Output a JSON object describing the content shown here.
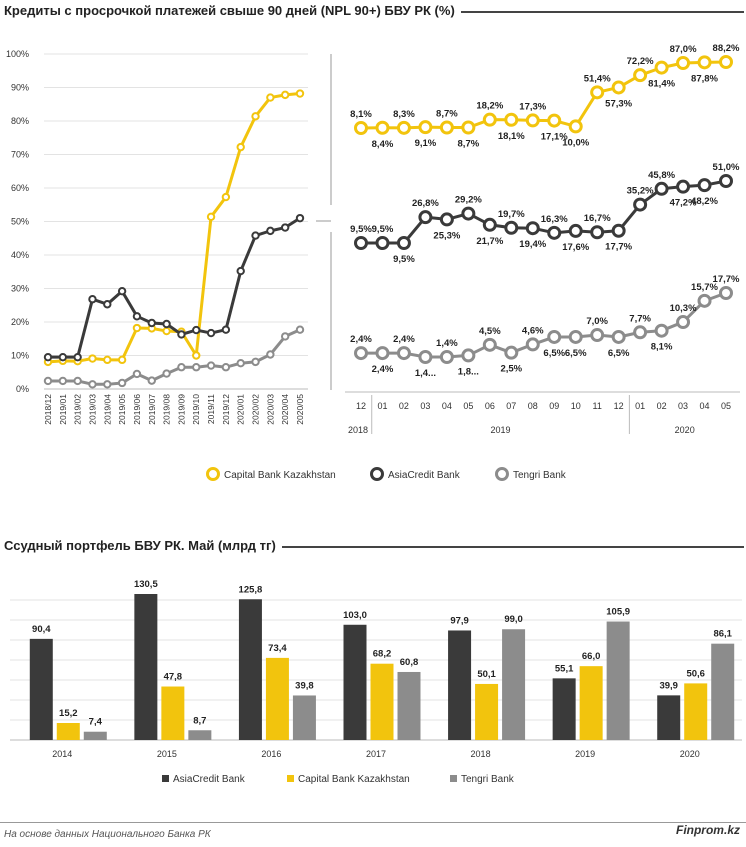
{
  "colors": {
    "capital": "#f2c40d",
    "asia": "#3a3a3a",
    "tengri": "#8c8c8c",
    "grid": "#e3e3e3",
    "axis": "#bbbbbb"
  },
  "chart_top_title": "Кредиты с просрочкой платежей свыше 90 дней (NPL 90+) БВУ РК (%)",
  "chart_bottom_title": "Ссудный портфель БВУ РК. Май (млрд тг)",
  "footer": {
    "source": "На основе данных Национального  Банка РК",
    "brand": "Finprom.kz"
  },
  "chart_data": [
    {
      "type": "line",
      "title": "Кредиты с просрочкой платежей свыше 90 дней (NPL 90+) БВУ РК (%)",
      "panel": "left",
      "x": [
        "2018/12",
        "2019/01",
        "2019/02",
        "2019/03",
        "2019/04",
        "2019/05",
        "2019/06",
        "2019/07",
        "2019/08",
        "2019/09",
        "2019/10",
        "2019/11",
        "2019/12",
        "2020/01",
        "2020/02",
        "2020/03",
        "2020/04",
        "2020/05"
      ],
      "yticks": [
        "0%",
        "10%",
        "20%",
        "30%",
        "40%",
        "50%",
        "60%",
        "70%",
        "80%",
        "90%",
        "100%"
      ],
      "ylim": [
        0,
        100
      ],
      "grid": true,
      "legend": "none",
      "series": [
        {
          "key": "capital",
          "values": [
            8.1,
            8.4,
            8.3,
            9.1,
            8.7,
            8.7,
            18.2,
            18.1,
            17.3,
            17.1,
            10.0,
            51.4,
            57.3,
            72.2,
            81.4,
            87.0,
            87.8,
            88.2
          ]
        },
        {
          "key": "asia",
          "values": [
            9.5,
            9.5,
            9.5,
            26.8,
            25.3,
            29.2,
            21.7,
            19.7,
            19.4,
            16.3,
            17.6,
            16.7,
            17.7,
            35.2,
            45.8,
            47.2,
            48.2,
            51.0
          ]
        },
        {
          "key": "tengri",
          "values": [
            2.4,
            2.4,
            2.4,
            1.4,
            1.4,
            1.8,
            4.5,
            2.5,
            4.6,
            6.5,
            6.5,
            7.0,
            6.5,
            7.7,
            8.1,
            10.3,
            15.7,
            17.7
          ]
        }
      ]
    },
    {
      "type": "line",
      "panel": "right",
      "month_labels": [
        "12",
        "01",
        "02",
        "03",
        "04",
        "05",
        "06",
        "07",
        "08",
        "09",
        "10",
        "11",
        "12",
        "01",
        "02",
        "03",
        "04",
        "05"
      ],
      "year_labels": [
        "2018",
        "2019",
        "2020"
      ],
      "legend": "bottom",
      "legend_entries": [
        {
          "key": "capital",
          "label": "Capital Bank Kazakhstan"
        },
        {
          "key": "asia",
          "label": "AsiaCredit Bank"
        },
        {
          "key": "tengri",
          "label": "Tengri Bank"
        }
      ],
      "series": [
        {
          "key": "capital",
          "values": [
            8.1,
            8.4,
            8.3,
            9.1,
            8.7,
            8.7,
            18.2,
            18.1,
            17.3,
            17.1,
            10.0,
            51.4,
            57.3,
            72.2,
            81.4,
            87.0,
            87.8,
            88.2
          ],
          "labels": [
            "8,1%",
            "8,4%",
            "8,3%",
            "9,1%",
            "8,7%",
            "8,7%",
            "18,2%",
            "18,1%",
            "17,3%",
            "17,1%",
            "10,0%",
            "51,4%",
            "57,3%",
            "72,2%",
            "81,4%",
            "87,0%",
            "87,8%",
            "88,2%"
          ]
        },
        {
          "key": "asia",
          "values": [
            9.5,
            9.5,
            9.5,
            26.8,
            25.3,
            29.2,
            21.7,
            19.7,
            19.4,
            16.3,
            17.6,
            16.7,
            17.7,
            35.2,
            45.8,
            47.2,
            48.2,
            51.0
          ],
          "labels": [
            "9,5%",
            "9,5%",
            "9,5%",
            "26,8%",
            "25,3%",
            "29,2%",
            "21,7%",
            "19,7%",
            "19,4%",
            "16,3%",
            "17,6%",
            "16,7%",
            "17,7%",
            "35,2%",
            "45,8%",
            "47,2%",
            "48,2%",
            "51,0%"
          ]
        },
        {
          "key": "tengri",
          "values": [
            2.4,
            2.4,
            2.4,
            1.4,
            1.4,
            1.8,
            4.5,
            2.5,
            4.6,
            6.5,
            6.5,
            7.0,
            6.5,
            7.7,
            8.1,
            10.3,
            15.7,
            17.7
          ],
          "labels": [
            "2,4%",
            "2,4%",
            "2,4%",
            "1,4...",
            "1,4%",
            "1,8...",
            "4,5%",
            "2,5%",
            "4,6%",
            "6,5%",
            "6,5%",
            "7,0%",
            "6,5%",
            "7,7%",
            "8,1%",
            "10,3%",
            "15,7%",
            "17,7%"
          ]
        }
      ]
    },
    {
      "type": "bar",
      "title": "Ссудный портфель БВУ РК. Май (млрд тг)",
      "categories": [
        "2014",
        "2015",
        "2016",
        "2017",
        "2018",
        "2019",
        "2020"
      ],
      "ylim": [
        0,
        140
      ],
      "grid": true,
      "legend": "bottom",
      "series": [
        {
          "key": "asia",
          "name": "AsiaCredit Bank",
          "values": [
            90.4,
            130.5,
            125.8,
            103.0,
            97.9,
            55.1,
            39.9
          ],
          "labels": [
            "90,4",
            "130,5",
            "125,8",
            "103,0",
            "97,9",
            "55,1",
            "39,9"
          ]
        },
        {
          "key": "capital",
          "name": "Capital Bank Kazakhstan",
          "values": [
            15.2,
            47.8,
            73.4,
            68.2,
            50.1,
            66.0,
            50.6
          ],
          "labels": [
            "15,2",
            "47,8",
            "73,4",
            "68,2",
            "50,1",
            "66,0",
            "50,6"
          ]
        },
        {
          "key": "tengri",
          "name": "Tengri Bank",
          "values": [
            7.4,
            8.7,
            39.8,
            60.8,
            99.0,
            105.9,
            86.1
          ],
          "labels": [
            "7,4",
            "8,7",
            "39,8",
            "60,8",
            "99,0",
            "105,9",
            "86,1"
          ]
        }
      ]
    }
  ]
}
